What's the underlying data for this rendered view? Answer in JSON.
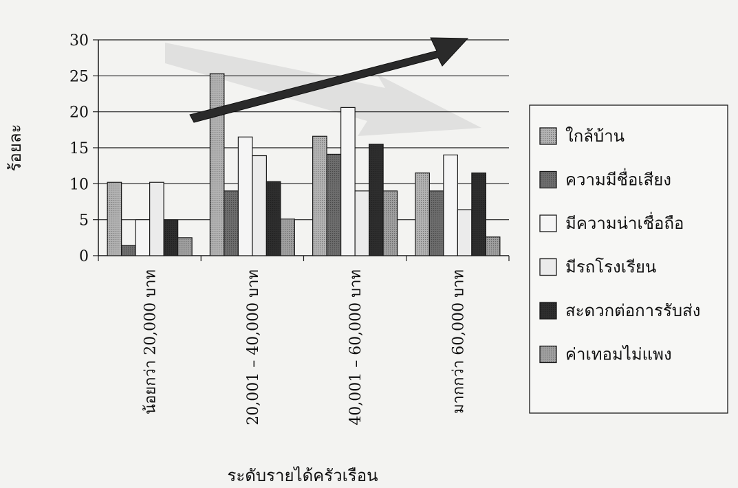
{
  "chart_data": {
    "type": "bar",
    "title": "",
    "xlabel": "ระดับรายได้ครัวเรือน",
    "ylabel": "ร้อยละ",
    "ylim": [
      0,
      30
    ],
    "yticks": [
      0,
      5,
      10,
      15,
      20,
      25,
      30
    ],
    "grid": true,
    "legend_position": "right",
    "categories": [
      "น้อยกว่า 20,000 บาท",
      "20,001 – 40,000 บาท",
      "40,001 – 60,000 บาท",
      "มากกว่า 60,000 บาท"
    ],
    "series": [
      {
        "name": "ใกล้บ้าน",
        "values": [
          10.2,
          25.3,
          16.6,
          11.5
        ],
        "color": "#b3b3b3",
        "pattern": "dots"
      },
      {
        "name": "ความมีชื่อเสียง",
        "values": [
          1.4,
          9.0,
          14.1,
          9.0
        ],
        "color": "#6e6e6e",
        "pattern": "dots"
      },
      {
        "name": "มีความน่าเชื่อถือ",
        "values": [
          5.0,
          16.5,
          20.6,
          14.0
        ],
        "color": "#f5f5f5",
        "pattern": "none"
      },
      {
        "name": "มีรถโรงเรียน",
        "values": [
          10.2,
          13.9,
          9.0,
          6.4
        ],
        "color": "#ebebeb",
        "pattern": "none"
      },
      {
        "name": "สะดวกต่อการรับส่ง",
        "values": [
          5.0,
          10.3,
          15.5,
          11.5
        ],
        "color": "#2e2e2e",
        "pattern": "dots"
      },
      {
        "name": "ค่าเทอมไม่แพง",
        "values": [
          2.5,
          5.1,
          9.0,
          2.6
        ],
        "color": "#a0a0a0",
        "pattern": "dots"
      }
    ],
    "annotations": [
      {
        "type": "arrow",
        "direction": "up",
        "color": "#2a2a2a"
      },
      {
        "type": "arrow",
        "direction": "down",
        "color": "#d0d0d0"
      }
    ]
  }
}
